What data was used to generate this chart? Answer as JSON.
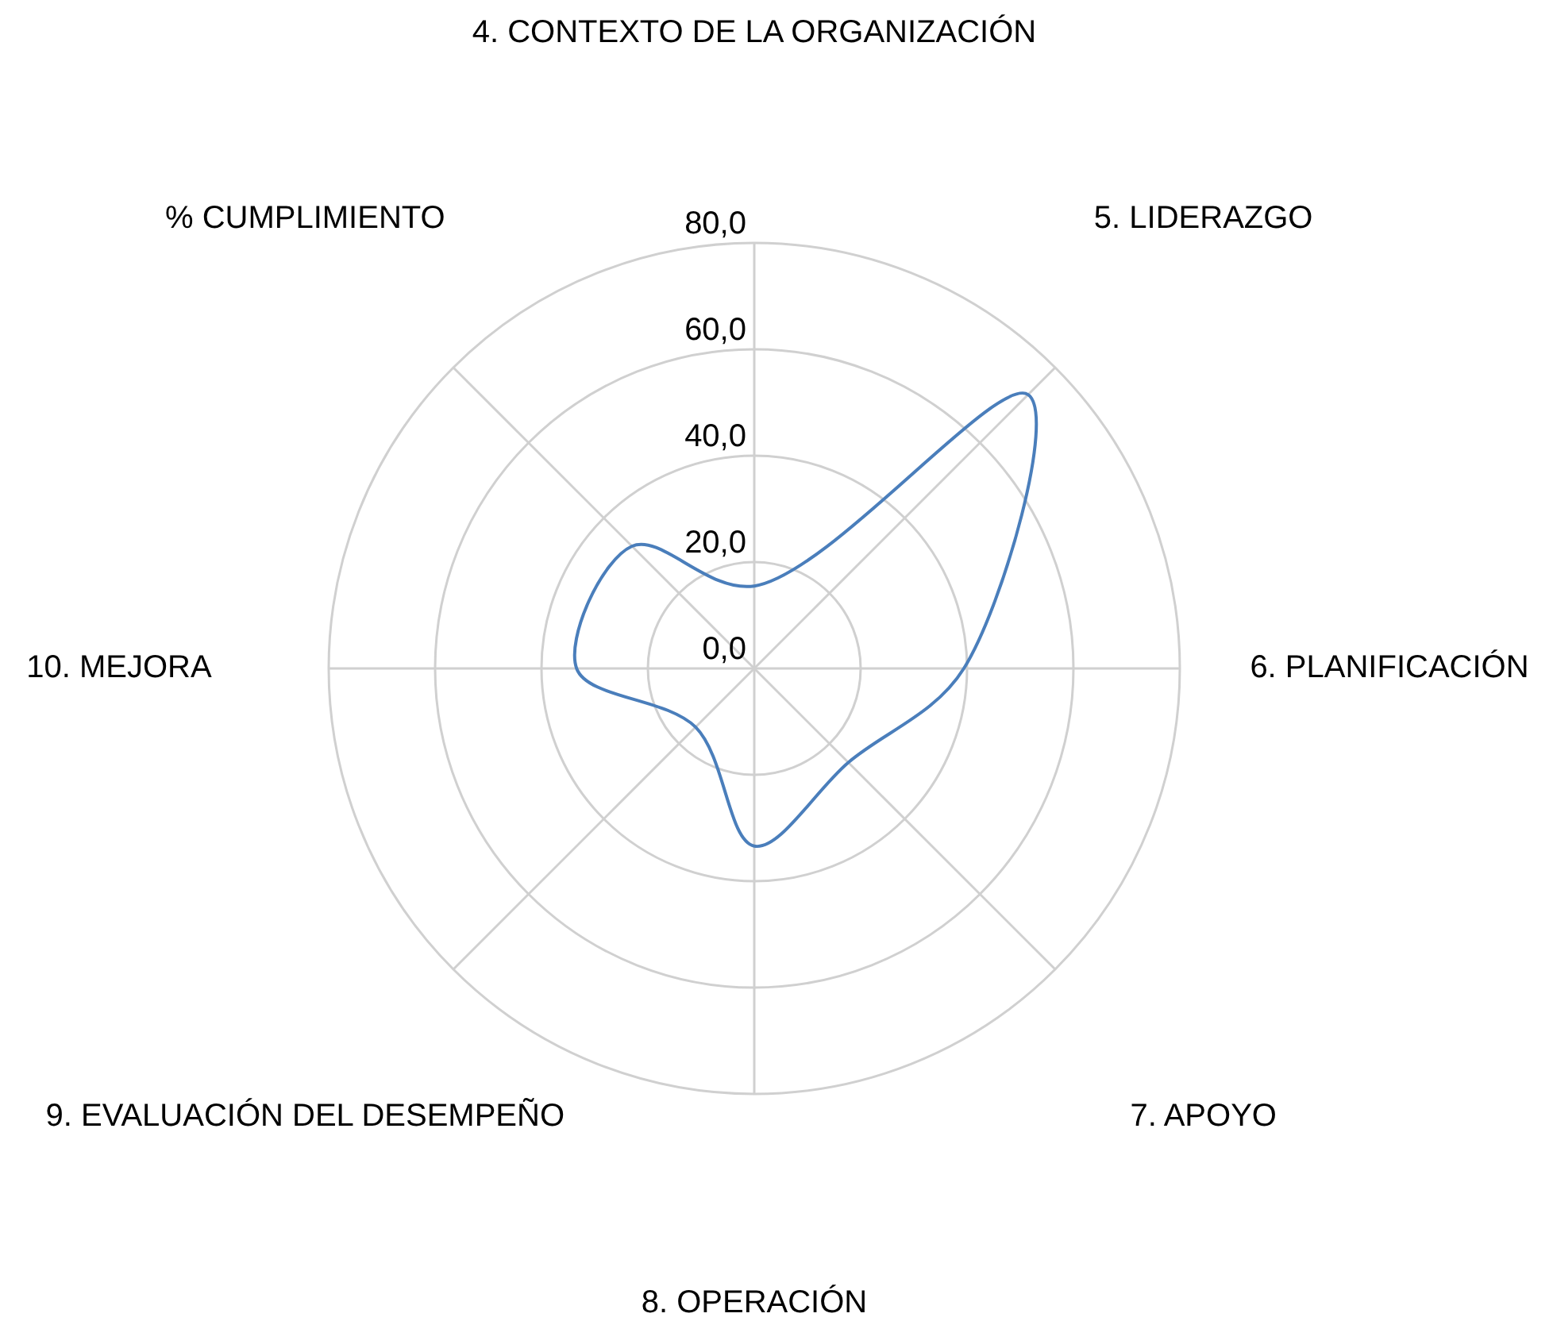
{
  "chart_data": {
    "type": "radar",
    "categories": [
      "4. CONTEXTO DE LA ORGANIZACIÓN",
      "5. LIDERAZGO",
      "6. PLANIFICACIÓN",
      "7. APOYO",
      "8. OPERACIÓN",
      "9. EVALUACIÓN DEL DESEMPEÑO",
      "10. MEJORA",
      "% CUMPLIMIENTO"
    ],
    "series": [
      {
        "color": "#4a7ebb",
        "values": [
          15.5,
          72.8,
          39.4,
          25,
          33.4,
          15.6,
          33.4,
          32.5
        ]
      }
    ],
    "ylim": [
      0,
      80
    ],
    "yticks": [
      {
        "value": 0,
        "label": "0,0"
      },
      {
        "value": 20,
        "label": "20,0"
      },
      {
        "value": 40,
        "label": "40,0"
      },
      {
        "value": 60,
        "label": "60,0"
      },
      {
        "value": 80,
        "label": "80,0"
      }
    ],
    "grid": true,
    "marker": "none",
    "line_style": "solid"
  }
}
